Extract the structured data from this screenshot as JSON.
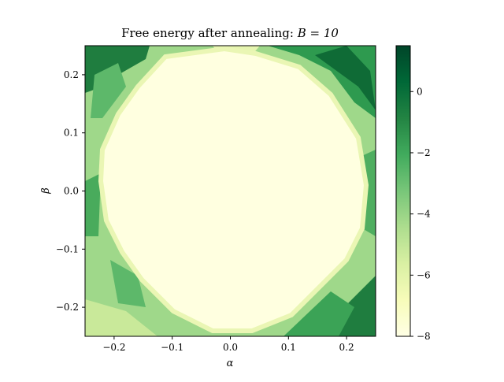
{
  "chart_data": {
    "type": "heatmap",
    "title": "Free energy after annealing: B = 10",
    "title_prefix": "Free energy after annealing: ",
    "title_math": "B = 10",
    "xlabel": "α",
    "ylabel": "β",
    "xlim": [
      -0.25,
      0.25
    ],
    "ylim": [
      -0.25,
      0.25
    ],
    "x_ticks": [
      -0.2,
      -0.1,
      0.0,
      0.1,
      0.2
    ],
    "x_tick_labels": [
      "−0.2",
      "−0.1",
      "0.0",
      "0.1",
      "0.2"
    ],
    "y_ticks": [
      -0.2,
      -0.1,
      0.0,
      0.1,
      0.2
    ],
    "y_tick_labels": [
      "−0.2",
      "−0.1",
      "0.0",
      "0.1",
      "0.2"
    ],
    "colormap": "YlGn (reversed)",
    "colorbar": {
      "range": [
        -8,
        1.5
      ],
      "ticks": [
        0,
        -2,
        -4,
        -6,
        -8
      ],
      "tick_labels": [
        "0",
        "−2",
        "−4",
        "−6",
        "−8"
      ]
    },
    "colors": {
      "low": "#ffffe5",
      "mid": "#78c679",
      "high": "#004529"
    },
    "description_of_field": [
      {
        "region": "center disk radius ~0.17",
        "value": -8
      },
      {
        "region": "outer ring",
        "value_range": [
          -5.5,
          -1
        ]
      },
      {
        "region": "top-left corner",
        "value": 0.5
      },
      {
        "region": "top-right corner",
        "value": 0.3
      },
      {
        "region": "bottom-right corner",
        "value": 0.5
      },
      {
        "region": "bottom-left corner",
        "value": -4
      }
    ]
  }
}
